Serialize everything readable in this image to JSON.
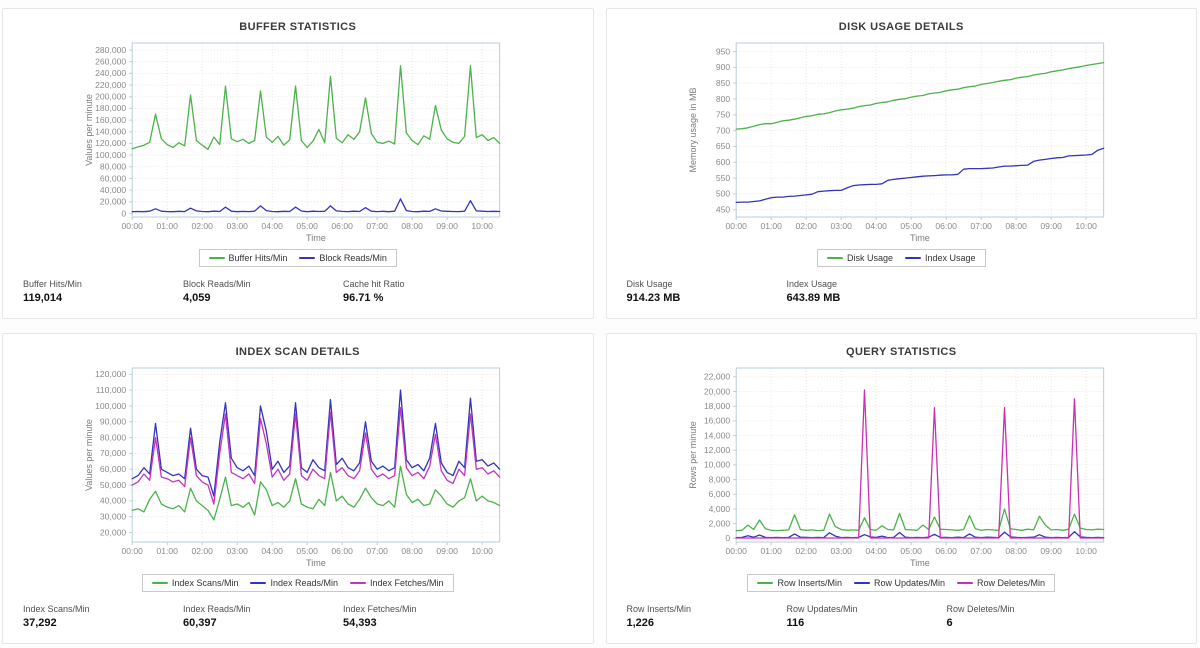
{
  "colors": {
    "green": "#4bb34b",
    "blue": "#3434bd",
    "magenta": "#c136bd",
    "pink_magenta": "#cc30b2",
    "axis": "#b9cfdb",
    "grid": "#ecdede",
    "tick_text": "#8a8a8a"
  },
  "panels": [
    {
      "title": "BUFFER STATISTICS",
      "stats": [
        {
          "label": "Buffer Hits/Min",
          "value": "119,014"
        },
        {
          "label": "Block Reads/Min",
          "value": "4,059"
        },
        {
          "label": "Cache hit Ratio",
          "value": "96.71 %"
        }
      ]
    },
    {
      "title": "DISK USAGE DETAILS",
      "stats": [
        {
          "label": "Disk Usage",
          "value": "914.23 MB"
        },
        {
          "label": "Index Usage",
          "value": "643.89 MB"
        }
      ]
    },
    {
      "title": "INDEX SCAN DETAILS",
      "stats": [
        {
          "label": "Index Scans/Min",
          "value": "37,292"
        },
        {
          "label": "Index Reads/Min",
          "value": "60,397"
        },
        {
          "label": "Index Fetches/Min",
          "value": "54,393"
        }
      ]
    },
    {
      "title": "QUERY STATISTICS",
      "stats": [
        {
          "label": "Row Inserts/Min",
          "value": "1,226"
        },
        {
          "label": "Row Updates/Min",
          "value": "116"
        },
        {
          "label": "Row Deletes/Min",
          "value": "6"
        }
      ]
    }
  ],
  "chart_data": [
    {
      "type": "line",
      "title": "BUFFER STATISTICS",
      "xlabel": "Time",
      "ylabel": "Values per minute",
      "grid": true,
      "legend_position": "bottom",
      "x_range_hours": [
        0,
        10.5
      ],
      "xtick_labels": [
        "00:00",
        "01:00",
        "02:00",
        "03:00",
        "04:00",
        "05:00",
        "06:00",
        "07:00",
        "08:00",
        "09:00",
        "10:00"
      ],
      "ylim": [
        -6000,
        292000
      ],
      "yticks": {
        "start": 0,
        "end": 280000,
        "step": 20000
      },
      "series": [
        {
          "name": "Buffer Hits/Min",
          "color": "#4bb34b",
          "values": [
            111000,
            114000,
            117000,
            122000,
            170000,
            128000,
            118000,
            113000,
            121000,
            116000,
            203000,
            125000,
            117000,
            110000,
            131000,
            118000,
            218000,
            128000,
            123000,
            127000,
            120000,
            125000,
            210000,
            131000,
            122000,
            132000,
            117000,
            126000,
            218000,
            125000,
            113000,
            124000,
            144000,
            121000,
            235000,
            129000,
            121000,
            135000,
            127000,
            140000,
            198000,
            137000,
            122000,
            120000,
            124000,
            119000,
            253000,
            138000,
            125000,
            118000,
            133000,
            127000,
            185000,
            143000,
            128000,
            122000,
            120000,
            132000,
            253000,
            130000,
            135000,
            125000,
            130000,
            120000
          ]
        },
        {
          "name": "Block Reads/Min",
          "color": "#3434bd",
          "values": [
            3000,
            3500,
            3000,
            4000,
            8000,
            4000,
            3200,
            3000,
            3800,
            3200,
            9000,
            4500,
            3500,
            3000,
            4000,
            3500,
            11000,
            4000,
            3000,
            3600,
            3200,
            4000,
            13000,
            5000,
            3400,
            3000,
            3800,
            3400,
            11000,
            4200,
            3000,
            4000,
            3500,
            3800,
            13000,
            4500,
            3600,
            3200,
            4000,
            3500,
            10000,
            4000,
            3200,
            3800,
            3000,
            4000,
            25000,
            5000,
            3500,
            3000,
            4000,
            3600,
            8000,
            4200,
            3800,
            3400,
            3200,
            4000,
            22000,
            4500,
            4000,
            3500,
            3800,
            3500
          ]
        }
      ]
    },
    {
      "type": "line",
      "title": "DISK USAGE DETAILS",
      "xlabel": "Time",
      "ylabel": "Memory usage in MB",
      "grid": true,
      "legend_position": "bottom",
      "x_range_hours": [
        0,
        10.5
      ],
      "xtick_labels": [
        "00:00",
        "01:00",
        "02:00",
        "03:00",
        "04:00",
        "05:00",
        "06:00",
        "07:00",
        "08:00",
        "09:00",
        "10:00"
      ],
      "ylim": [
        427,
        977
      ],
      "yticks": {
        "start": 450,
        "end": 950,
        "step": 50
      },
      "series": [
        {
          "name": "Disk Usage",
          "color": "#4bb34b",
          "values": [
            705,
            706,
            709,
            714,
            719,
            722,
            722,
            726,
            731,
            733,
            736,
            741,
            745,
            747,
            752,
            753,
            757,
            762,
            766,
            768,
            771,
            776,
            779,
            781,
            786,
            789,
            791,
            796,
            799,
            801,
            806,
            809,
            811,
            816,
            819,
            821,
            826,
            829,
            831,
            836,
            839,
            841,
            846,
            849,
            852,
            856,
            859,
            861,
            866,
            869,
            871,
            876,
            879,
            881,
            886,
            889,
            892,
            896,
            899,
            902,
            906,
            909,
            912,
            915
          ]
        },
        {
          "name": "Index Usage",
          "color": "#3434bd",
          "values": [
            473,
            474,
            474,
            476,
            478,
            483,
            488,
            490,
            490,
            492,
            493,
            495,
            497,
            499,
            507,
            509,
            510,
            511,
            511,
            519,
            526,
            528,
            529,
            530,
            530,
            532,
            543,
            546,
            548,
            550,
            552,
            554,
            556,
            557,
            558,
            559,
            560,
            560,
            562,
            578,
            580,
            580,
            580,
            581,
            582,
            585,
            588,
            588,
            589,
            590,
            591,
            603,
            607,
            609,
            612,
            614,
            615,
            620,
            621,
            622,
            623,
            625,
            638,
            644
          ]
        }
      ]
    },
    {
      "type": "line",
      "title": "INDEX SCAN DETAILS",
      "xlabel": "Time",
      "ylabel": "Values per minute",
      "grid": true,
      "legend_position": "bottom",
      "x_range_hours": [
        0,
        10.5
      ],
      "xtick_labels": [
        "00:00",
        "01:00",
        "02:00",
        "03:00",
        "04:00",
        "05:00",
        "06:00",
        "07:00",
        "08:00",
        "09:00",
        "10:00"
      ],
      "ylim": [
        14000,
        124000
      ],
      "yticks": {
        "start": 20000,
        "end": 120000,
        "step": 10000
      },
      "series": [
        {
          "name": "Index Scans/Min",
          "color": "#4bb34b",
          "values": [
            34000,
            35000,
            33000,
            41000,
            46000,
            38000,
            36000,
            35000,
            37000,
            33000,
            48000,
            40000,
            37000,
            34000,
            28000,
            41000,
            55000,
            37000,
            38000,
            36000,
            39000,
            31000,
            52000,
            47000,
            37000,
            39000,
            36000,
            40000,
            54000,
            38000,
            36000,
            35000,
            41000,
            37000,
            58000,
            40000,
            43000,
            38000,
            36000,
            41000,
            48000,
            42000,
            38000,
            37000,
            40000,
            36000,
            62000,
            44000,
            39000,
            41000,
            37000,
            38000,
            47000,
            43000,
            38000,
            36000,
            40000,
            42000,
            54000,
            40000,
            43000,
            40000,
            39000,
            37000
          ]
        },
        {
          "name": "Index Reads/Min",
          "color": "#3434bd",
          "values": [
            54000,
            56000,
            61000,
            57000,
            89000,
            60000,
            58000,
            56000,
            57000,
            54000,
            86000,
            60000,
            56000,
            55000,
            43000,
            77000,
            102000,
            67000,
            61000,
            59000,
            62000,
            56000,
            100000,
            84000,
            60000,
            65000,
            58000,
            62000,
            102000,
            61000,
            58000,
            66000,
            61000,
            59000,
            104000,
            63000,
            67000,
            61000,
            59000,
            64000,
            90000,
            65000,
            60000,
            62000,
            59000,
            61000,
            110000,
            66000,
            61000,
            63000,
            59000,
            67000,
            89000,
            64000,
            58000,
            56000,
            65000,
            61000,
            105000,
            65000,
            66000,
            62000,
            64000,
            60000
          ]
        },
        {
          "name": "Index Fetches/Min",
          "color": "#c136bd",
          "values": [
            50000,
            52000,
            57000,
            53000,
            80000,
            55000,
            54000,
            52000,
            53000,
            49000,
            80000,
            56000,
            52000,
            50000,
            38000,
            70000,
            95000,
            58000,
            56000,
            54000,
            57000,
            51000,
            92000,
            76000,
            55000,
            60000,
            53000,
            57000,
            95000,
            56000,
            53000,
            60000,
            56000,
            54000,
            96000,
            58000,
            61000,
            56000,
            54000,
            59000,
            83000,
            60000,
            55000,
            57000,
            54000,
            56000,
            99000,
            61000,
            56000,
            58000,
            54000,
            62000,
            82000,
            59000,
            53000,
            51000,
            60000,
            56000,
            95000,
            60000,
            61000,
            57000,
            59000,
            55000
          ]
        }
      ]
    },
    {
      "type": "line",
      "title": "QUERY STATISTICS",
      "xlabel": "Time",
      "ylabel": "Rows per minute",
      "grid": true,
      "legend_position": "bottom",
      "x_range_hours": [
        0,
        10.5
      ],
      "xtick_labels": [
        "00:00",
        "01:00",
        "02:00",
        "03:00",
        "04:00",
        "05:00",
        "06:00",
        "07:00",
        "08:00",
        "09:00",
        "10:00"
      ],
      "ylim": [
        -500,
        23200
      ],
      "yticks": {
        "start": 0,
        "end": 22000,
        "step": 2000
      },
      "series": [
        {
          "name": "Row Inserts/Min",
          "color": "#4bb34b",
          "values": [
            1050,
            1100,
            1800,
            1200,
            2500,
            1300,
            1100,
            1050,
            1100,
            1150,
            3200,
            1200,
            1100,
            1150,
            1050,
            1100,
            3300,
            1600,
            1200,
            1100,
            1150,
            1100,
            2800,
            1200,
            1100,
            1700,
            1200,
            1150,
            3400,
            1200,
            1150,
            1100,
            1800,
            1200,
            2900,
            1250,
            1200,
            1150,
            1100,
            1200,
            3100,
            1300,
            1100,
            1200,
            1150,
            1100,
            4000,
            1300,
            1200,
            1100,
            1250,
            1150,
            3000,
            1800,
            1150,
            1200,
            1100,
            1250,
            3300,
            1400,
            1200,
            1150,
            1250,
            1200
          ]
        },
        {
          "name": "Row Updates/Min",
          "color": "#3434bd",
          "values": [
            100,
            120,
            350,
            150,
            450,
            120,
            100,
            120,
            100,
            120,
            600,
            150,
            120,
            100,
            120,
            100,
            750,
            300,
            100,
            120,
            100,
            120,
            500,
            200,
            120,
            300,
            100,
            120,
            800,
            150,
            100,
            120,
            100,
            150,
            550,
            120,
            120,
            100,
            150,
            100,
            600,
            150,
            100,
            150,
            120,
            100,
            850,
            200,
            120,
            100,
            120,
            150,
            500,
            150,
            100,
            120,
            100,
            120,
            900,
            200,
            120,
            100,
            120,
            100
          ]
        },
        {
          "name": "Row Deletes/Min",
          "color": "#cc30b2",
          "values": [
            50,
            50,
            50,
            50,
            50,
            50,
            50,
            50,
            50,
            50,
            50,
            50,
            50,
            50,
            50,
            50,
            50,
            50,
            50,
            50,
            50,
            50,
            20200,
            50,
            50,
            50,
            50,
            50,
            50,
            50,
            50,
            50,
            50,
            50,
            17800,
            50,
            50,
            50,
            50,
            50,
            50,
            50,
            50,
            50,
            50,
            50,
            17800,
            50,
            50,
            50,
            50,
            50,
            50,
            50,
            50,
            50,
            50,
            50,
            19000,
            50,
            50,
            50,
            50,
            50
          ]
        }
      ]
    }
  ]
}
